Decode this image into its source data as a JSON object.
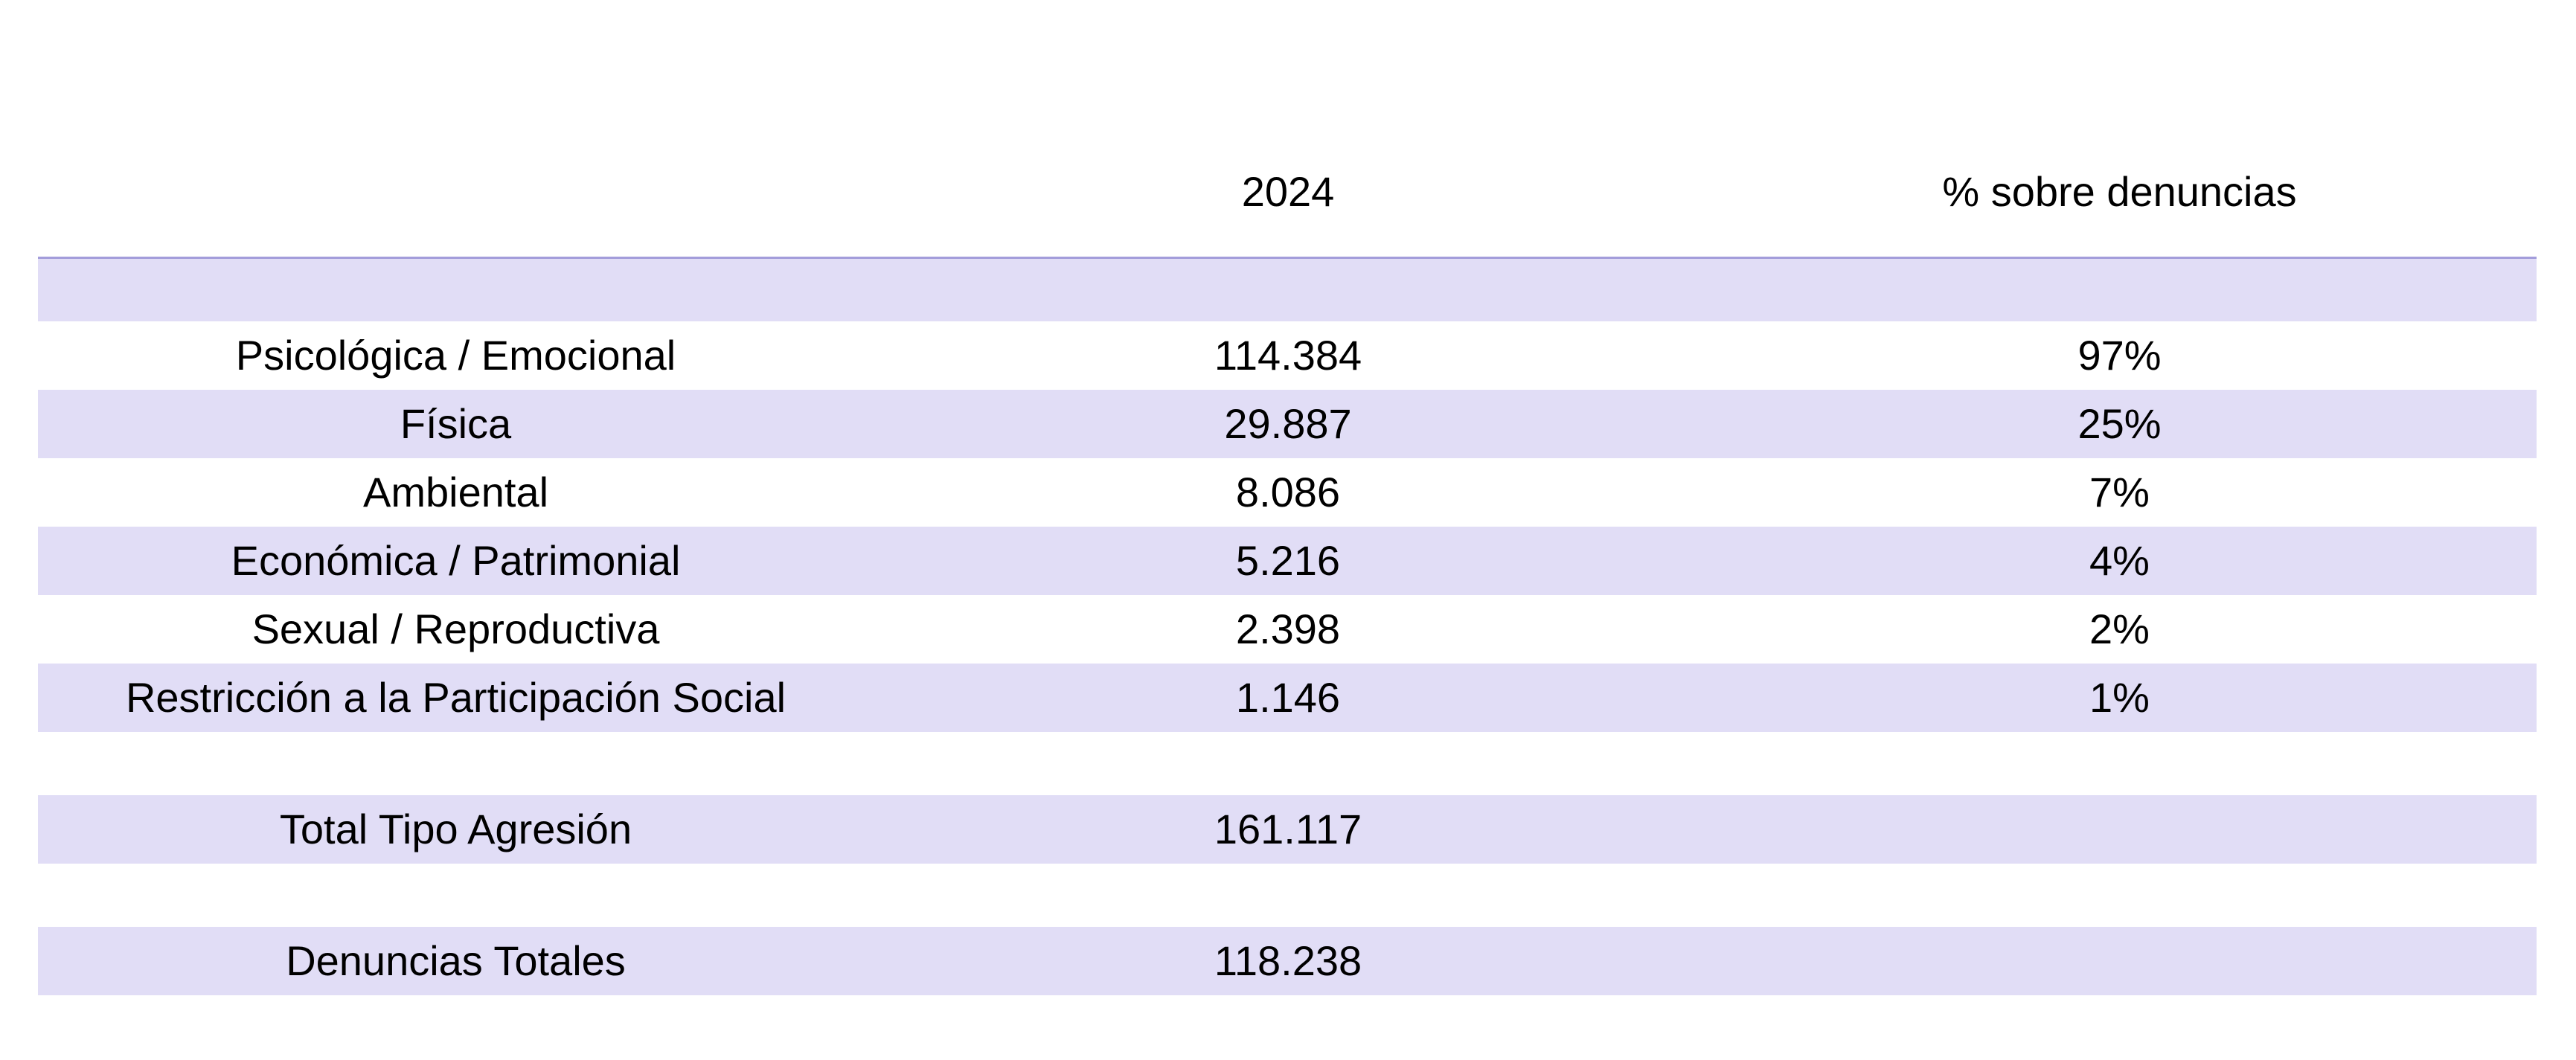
{
  "columns": {
    "category": "",
    "year": "2024",
    "percent": "% sobre denuncias"
  },
  "rows": [
    {
      "label": "Psicológica / Emocional",
      "value": "114.384",
      "percent": "97%",
      "shaded": false
    },
    {
      "label": "Física",
      "value": "29.887",
      "percent": "25%",
      "shaded": true
    },
    {
      "label": "Ambiental",
      "value": "8.086",
      "percent": "7%",
      "shaded": false
    },
    {
      "label": "Económica / Patrimonial",
      "value": "5.216",
      "percent": "4%",
      "shaded": true
    },
    {
      "label": "Sexual / Reproductiva",
      "value": "2.398",
      "percent": "2%",
      "shaded": false
    },
    {
      "label": "Restricción a la Participación Social",
      "value": "1.146",
      "percent": "1%",
      "shaded": true
    }
  ],
  "total_tipo": {
    "label": "Total Tipo Agresión",
    "value": "161.117"
  },
  "denuncias_totales": {
    "label": "Denuncias Totales",
    "value": "118.238"
  },
  "colors": {
    "row_shade": "#e1ddf6",
    "header_rule": "#a39ddb"
  }
}
